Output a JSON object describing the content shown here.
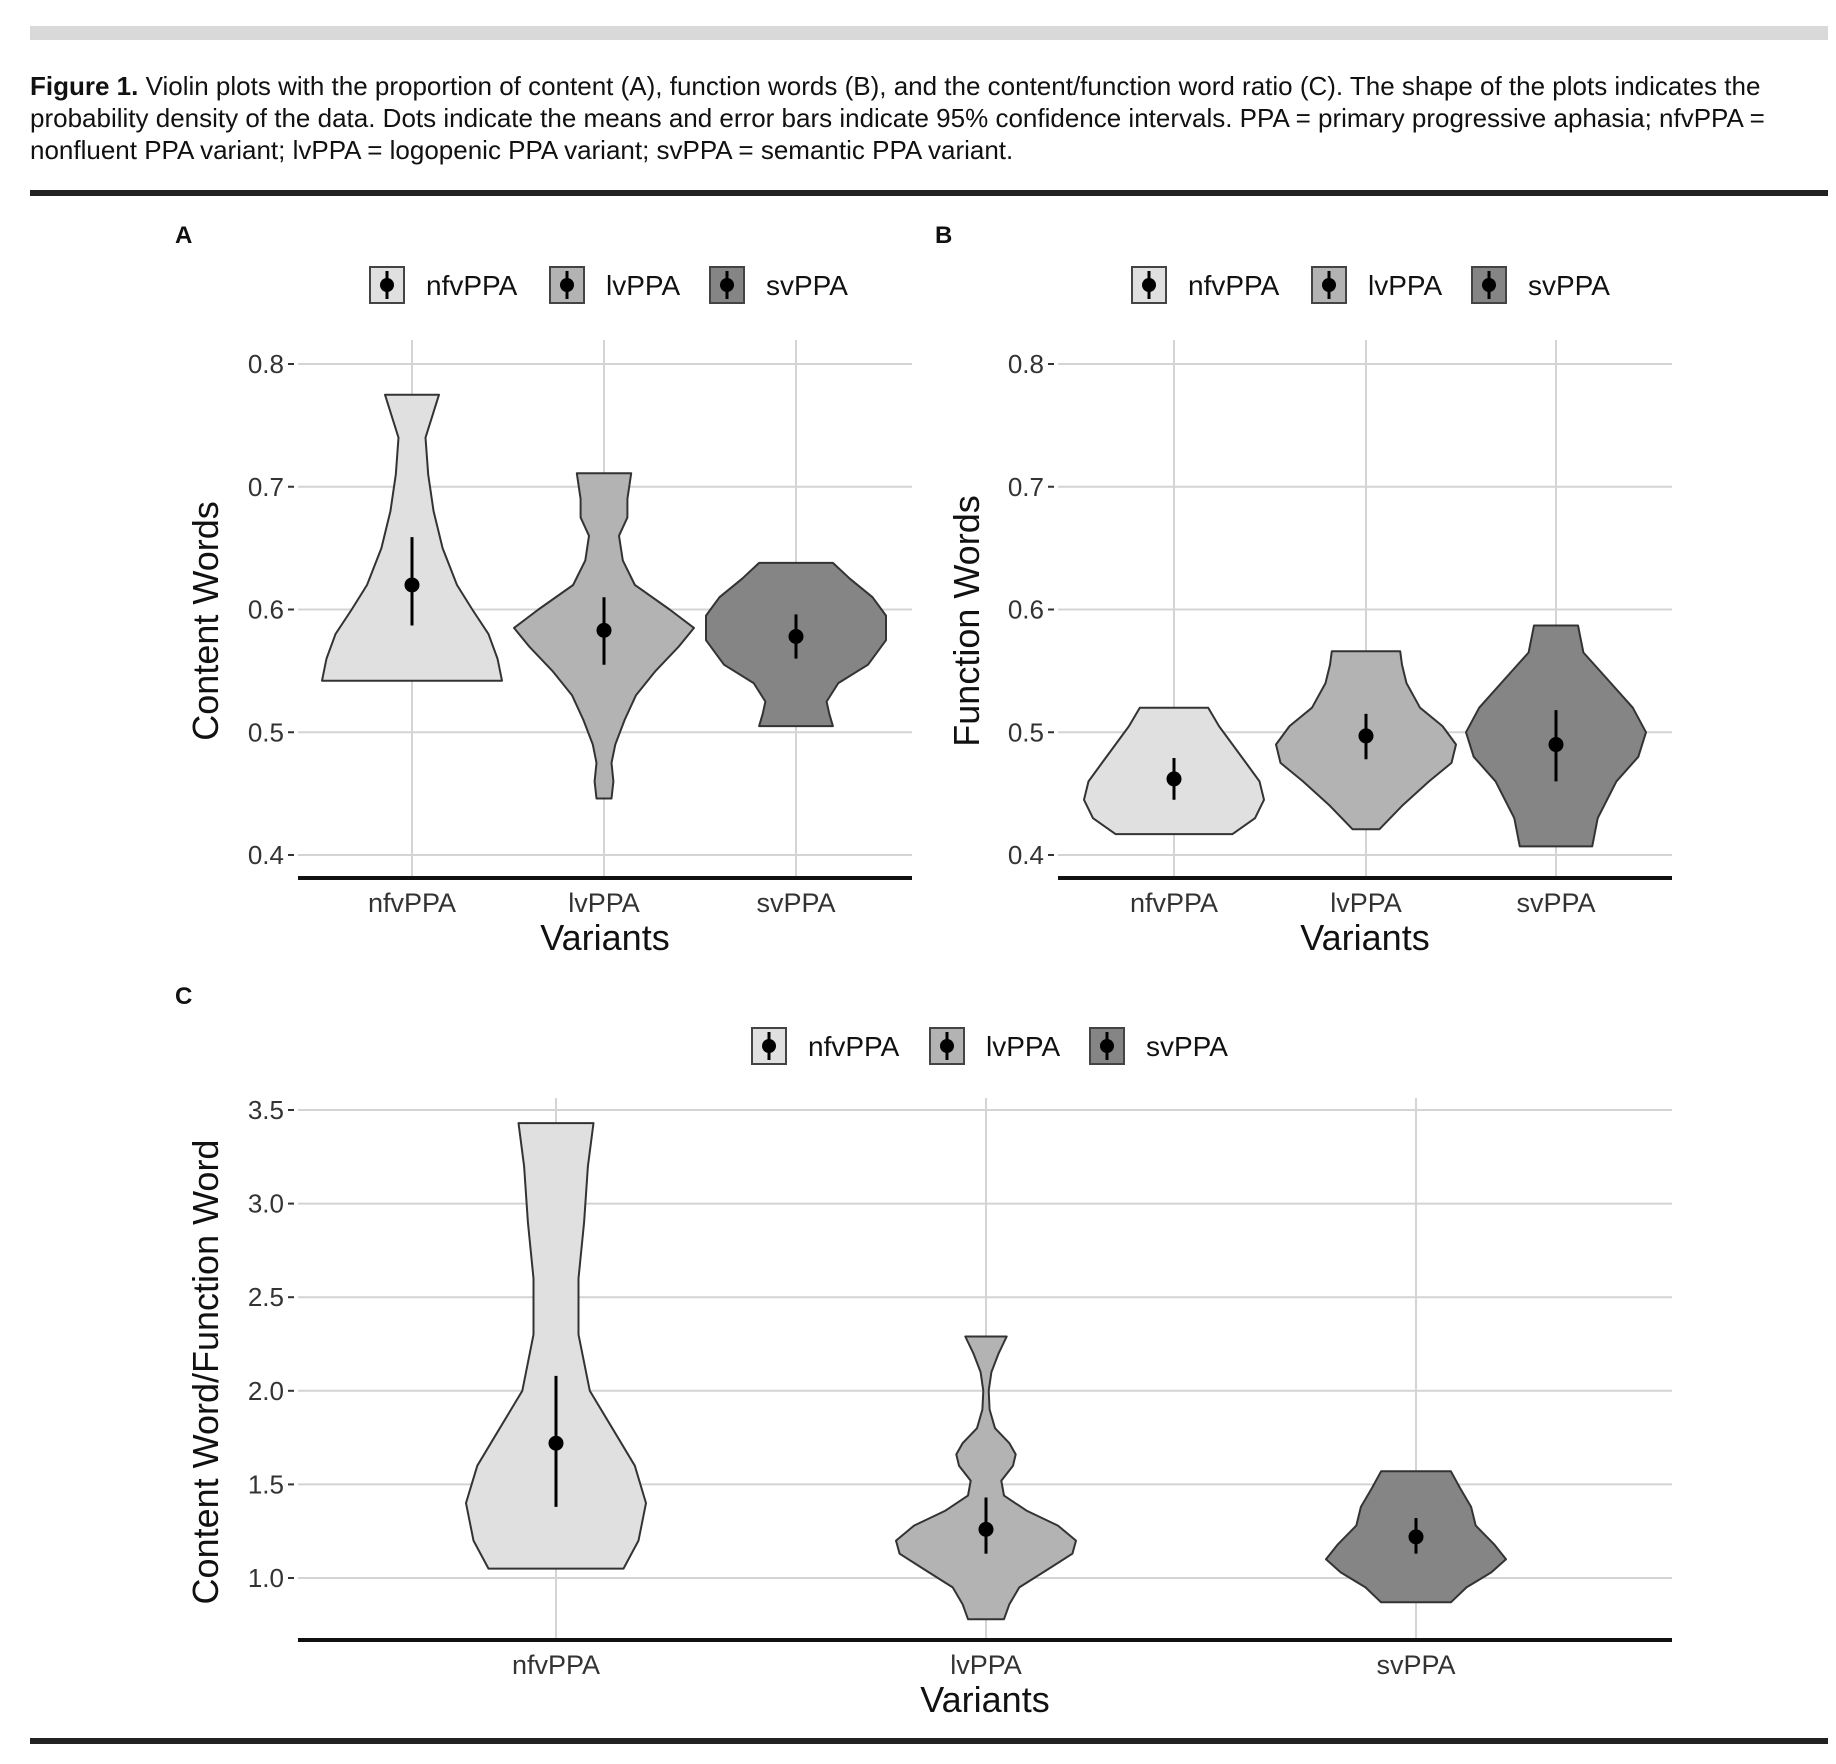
{
  "caption": {
    "label": "Figure 1.",
    "text": " Violin plots with the proportion of content (A), function words (B), and the content/function word ratio (C). The shape of the plots indicates the probability density of the data. Dots indicate the means and error bars indicate 95% confidence intervals. PPA = primary progressive aphasia; nfvPPA = nonfluent PPA variant; lvPPA = logopenic PPA variant; svPPA = semantic PPA variant."
  },
  "colors": {
    "nfvPPA": "#e0e0e0",
    "lvPPA": "#b3b3b3",
    "svPPA": "#858585",
    "grid": "#d4d4d4"
  },
  "chart_data": [
    {
      "panel": "A",
      "type": "violin",
      "xlabel": "Variants",
      "ylabel": "Content Words",
      "ylim": [
        0.38,
        0.83
      ],
      "yticks": [
        0.4,
        0.5,
        0.6,
        0.7,
        0.8
      ],
      "ytick_labels": [
        "0.4",
        "0.5",
        "0.6",
        "0.7",
        "0.8"
      ],
      "categories": [
        "nfvPPA",
        "lvPPA",
        "svPPA"
      ],
      "legend": [
        "nfvPPA",
        "lvPPA",
        "svPPA"
      ],
      "legend_position": "top",
      "series": [
        {
          "name": "nfvPPA",
          "mean": 0.62,
          "ci": [
            0.587,
            0.659
          ],
          "min": 0.542,
          "max": 0.775,
          "density": [
            [
              0.542,
              1.0
            ],
            [
              0.56,
              0.95
            ],
            [
              0.58,
              0.85
            ],
            [
              0.6,
              0.67
            ],
            [
              0.62,
              0.5
            ],
            [
              0.65,
              0.34
            ],
            [
              0.68,
              0.24
            ],
            [
              0.71,
              0.18
            ],
            [
              0.74,
              0.15
            ],
            [
              0.775,
              0.3
            ]
          ]
        },
        {
          "name": "lvPPA",
          "mean": 0.583,
          "ci": [
            0.555,
            0.61
          ],
          "min": 0.446,
          "max": 0.711,
          "density": [
            [
              0.446,
              0.08
            ],
            [
              0.46,
              0.1
            ],
            [
              0.475,
              0.08
            ],
            [
              0.49,
              0.12
            ],
            [
              0.51,
              0.22
            ],
            [
              0.53,
              0.34
            ],
            [
              0.55,
              0.55
            ],
            [
              0.57,
              0.8
            ],
            [
              0.585,
              0.96
            ],
            [
              0.6,
              0.7
            ],
            [
              0.62,
              0.33
            ],
            [
              0.64,
              0.2
            ],
            [
              0.66,
              0.16
            ],
            [
              0.675,
              0.25
            ],
            [
              0.69,
              0.25
            ],
            [
              0.711,
              0.29
            ]
          ]
        },
        {
          "name": "svPPA",
          "mean": 0.578,
          "ci": [
            0.56,
            0.596
          ],
          "min": 0.505,
          "max": 0.638,
          "density": [
            [
              0.505,
              0.41
            ],
            [
              0.515,
              0.37
            ],
            [
              0.525,
              0.34
            ],
            [
              0.54,
              0.47
            ],
            [
              0.555,
              0.8
            ],
            [
              0.575,
              1.0
            ],
            [
              0.595,
              1.0
            ],
            [
              0.61,
              0.85
            ],
            [
              0.625,
              0.6
            ],
            [
              0.638,
              0.41
            ]
          ]
        }
      ]
    },
    {
      "panel": "B",
      "type": "violin",
      "xlabel": "Variants",
      "ylabel": "Function Words",
      "ylim": [
        0.38,
        0.83
      ],
      "yticks": [
        0.4,
        0.5,
        0.6,
        0.7,
        0.8
      ],
      "ytick_labels": [
        "0.4",
        "0.5",
        "0.6",
        "0.7",
        "0.8"
      ],
      "categories": [
        "nfvPPA",
        "lvPPA",
        "svPPA"
      ],
      "legend": [
        "nfvPPA",
        "lvPPA",
        "svPPA"
      ],
      "legend_position": "top",
      "series": [
        {
          "name": "nfvPPA",
          "mean": 0.462,
          "ci": [
            0.445,
            0.479
          ],
          "min": 0.417,
          "max": 0.52,
          "density": [
            [
              0.417,
              0.65
            ],
            [
              0.43,
              0.9
            ],
            [
              0.445,
              1.0
            ],
            [
              0.46,
              0.95
            ],
            [
              0.475,
              0.8
            ],
            [
              0.49,
              0.65
            ],
            [
              0.505,
              0.5
            ],
            [
              0.52,
              0.38
            ]
          ]
        },
        {
          "name": "lvPPA",
          "mean": 0.497,
          "ci": [
            0.478,
            0.515
          ],
          "min": 0.421,
          "max": 0.566,
          "density": [
            [
              0.421,
              0.15
            ],
            [
              0.44,
              0.4
            ],
            [
              0.46,
              0.7
            ],
            [
              0.475,
              0.95
            ],
            [
              0.49,
              1.0
            ],
            [
              0.505,
              0.85
            ],
            [
              0.52,
              0.6
            ],
            [
              0.54,
              0.45
            ],
            [
              0.555,
              0.4
            ],
            [
              0.566,
              0.38
            ]
          ]
        },
        {
          "name": "svPPA",
          "mean": 0.49,
          "ci": [
            0.46,
            0.518
          ],
          "min": 0.407,
          "max": 0.587,
          "density": [
            [
              0.407,
              0.33
            ],
            [
              0.43,
              0.38
            ],
            [
              0.46,
              0.55
            ],
            [
              0.48,
              0.75
            ],
            [
              0.5,
              0.82
            ],
            [
              0.52,
              0.7
            ],
            [
              0.545,
              0.45
            ],
            [
              0.565,
              0.25
            ],
            [
              0.587,
              0.2
            ]
          ]
        }
      ]
    },
    {
      "panel": "C",
      "type": "violin",
      "xlabel": "Variants",
      "ylabel": "Content Word/Function Word",
      "ylim": [
        0.66,
        3.6
      ],
      "yticks": [
        1.0,
        1.5,
        2.0,
        2.5,
        3.0,
        3.5
      ],
      "ytick_labels": [
        "1.0",
        "1.5",
        "2.0",
        "2.5",
        "3.0",
        "3.5"
      ],
      "categories": [
        "nfvPPA",
        "lvPPA",
        "svPPA"
      ],
      "legend": [
        "nfvPPA",
        "lvPPA",
        "svPPA"
      ],
      "legend_position": "top",
      "series": [
        {
          "name": "nfvPPA",
          "mean": 1.72,
          "ci": [
            1.38,
            2.08
          ],
          "min": 1.05,
          "max": 3.43,
          "density": [
            [
              1.05,
              0.36
            ],
            [
              1.2,
              0.44
            ],
            [
              1.4,
              0.48
            ],
            [
              1.6,
              0.42
            ],
            [
              1.8,
              0.3
            ],
            [
              2.0,
              0.18
            ],
            [
              2.3,
              0.12
            ],
            [
              2.6,
              0.12
            ],
            [
              2.9,
              0.15
            ],
            [
              3.2,
              0.17
            ],
            [
              3.43,
              0.2
            ]
          ]
        },
        {
          "name": "lvPPA",
          "mean": 1.26,
          "ci": [
            1.13,
            1.43
          ],
          "min": 0.78,
          "max": 2.29,
          "density": [
            [
              0.78,
              0.2
            ],
            [
              0.86,
              0.26
            ],
            [
              0.95,
              0.37
            ],
            [
              1.05,
              0.7
            ],
            [
              1.13,
              0.96
            ],
            [
              1.2,
              1.0
            ],
            [
              1.28,
              0.8
            ],
            [
              1.36,
              0.45
            ],
            [
              1.44,
              0.2
            ],
            [
              1.52,
              0.17
            ],
            [
              1.6,
              0.3
            ],
            [
              1.66,
              0.33
            ],
            [
              1.72,
              0.26
            ],
            [
              1.8,
              0.1
            ],
            [
              1.9,
              0.04
            ],
            [
              2.0,
              0.03
            ],
            [
              2.1,
              0.06
            ],
            [
              2.2,
              0.14
            ],
            [
              2.29,
              0.23
            ]
          ]
        },
        {
          "name": "svPPA",
          "mean": 1.22,
          "ci": [
            1.13,
            1.32
          ],
          "min": 0.87,
          "max": 1.57,
          "density": [
            [
              0.87,
              0.38
            ],
            [
              0.95,
              0.55
            ],
            [
              1.03,
              0.82
            ],
            [
              1.1,
              0.98
            ],
            [
              1.18,
              0.85
            ],
            [
              1.28,
              0.65
            ],
            [
              1.38,
              0.6
            ],
            [
              1.48,
              0.48
            ],
            [
              1.57,
              0.38
            ]
          ]
        }
      ]
    }
  ]
}
